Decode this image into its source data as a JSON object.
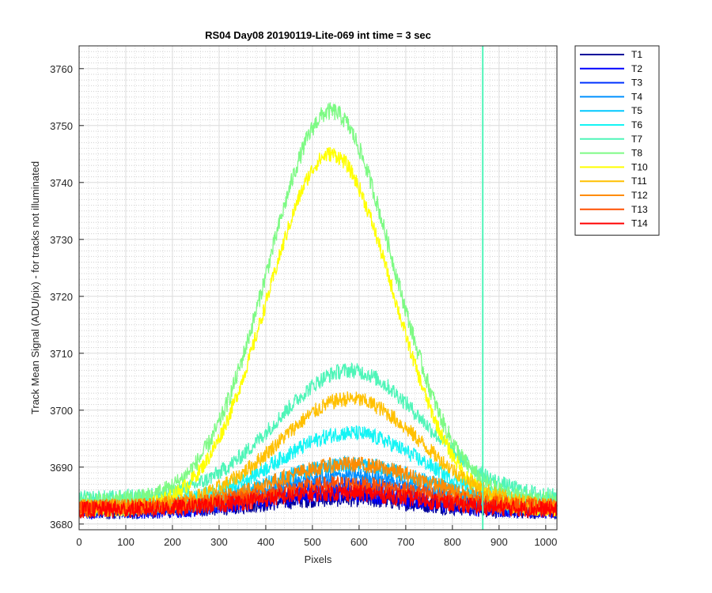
{
  "chart_data": {
    "type": "line",
    "title": "RS04 Day08 20190119-Lite-069 int time = 3 sec",
    "xlabel": "Pixels",
    "ylabel": "Track Mean Signal (ADU/pix) - for tracks not illuminated",
    "xlim": [
      0,
      1024
    ],
    "ylim": [
      3679,
      3764
    ],
    "xticks": [
      0,
      100,
      200,
      300,
      400,
      500,
      600,
      700,
      800,
      900,
      1000
    ],
    "yticks": [
      3680,
      3690,
      3700,
      3710,
      3720,
      3730,
      3740,
      3750,
      3760
    ],
    "grid": true,
    "minor_grid": true,
    "legend_position": "outside-right",
    "vertical_line": {
      "x": 865,
      "color": "#4ff5b8"
    },
    "series": [
      {
        "name": "T1",
        "color": "#00009a",
        "base": 3682.3,
        "peak": 3684.5,
        "center": 560,
        "width": 290,
        "noise": 1.5
      },
      {
        "name": "T2",
        "color": "#0000ff",
        "base": 3682.3,
        "peak": 3685.3,
        "center": 560,
        "width": 290,
        "noise": 1.5
      },
      {
        "name": "T3",
        "color": "#0033ff",
        "base": 3682.5,
        "peak": 3686.8,
        "center": 570,
        "width": 290,
        "noise": 1.4
      },
      {
        "name": "T4",
        "color": "#0090ff",
        "base": 3682.8,
        "peak": 3688.5,
        "center": 580,
        "width": 290,
        "noise": 1.4
      },
      {
        "name": "T5",
        "color": "#00c8ff",
        "base": 3683.0,
        "peak": 3690.5,
        "center": 580,
        "width": 290,
        "noise": 1.4
      },
      {
        "name": "T6",
        "color": "#14f4f4",
        "base": 3683.3,
        "peak": 3696.0,
        "center": 580,
        "width": 280,
        "noise": 1.4
      },
      {
        "name": "T7",
        "color": "#4ff5b8",
        "base": 3684.5,
        "peak": 3707.0,
        "center": 580,
        "width": 280,
        "noise": 1.4
      },
      {
        "name": "T8",
        "color": "#7dfa84",
        "base": 3684.0,
        "peak": 3752.5,
        "center": 540,
        "width": 240,
        "noise": 1.6
      },
      {
        "name": "T10",
        "color": "#ffff00",
        "base": 3682.5,
        "peak": 3745.0,
        "center": 540,
        "width": 240,
        "noise": 1.4
      },
      {
        "name": "T11",
        "color": "#ffc000",
        "base": 3683.0,
        "peak": 3702.0,
        "center": 580,
        "width": 270,
        "noise": 1.4
      },
      {
        "name": "T12",
        "color": "#ff8c00",
        "base": 3683.0,
        "peak": 3690.5,
        "center": 580,
        "width": 290,
        "noise": 1.4
      },
      {
        "name": "T13",
        "color": "#ff5000",
        "base": 3682.8,
        "peak": 3687.0,
        "center": 570,
        "width": 300,
        "noise": 1.5
      },
      {
        "name": "T14",
        "color": "#ff0000",
        "base": 3682.5,
        "peak": 3685.5,
        "center": 560,
        "width": 300,
        "noise": 1.5
      }
    ]
  }
}
